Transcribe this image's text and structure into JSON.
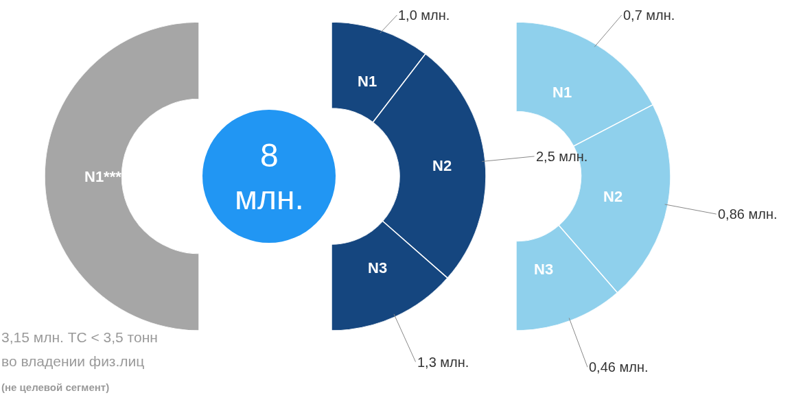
{
  "chart_data": [
    {
      "type": "pie",
      "categories": [
        "N1***"
      ],
      "values": [
        100
      ],
      "colors": [
        "#a6a6a6"
      ],
      "annotations": [
        "3,15 млн. ТС < 3,5 тонн",
        "во владении физ.лиц",
        "(не целевой сегмент)"
      ]
    },
    {
      "type": "other",
      "annotations": [
        "8\nмлн."
      ]
    },
    {
      "type": "donut",
      "categories": [
        "N1",
        "N2",
        "N3"
      ],
      "values": [
        1.0,
        2.5,
        1.3
      ],
      "colors": [
        "#15467f",
        "#15467f",
        "#15467f"
      ],
      "value_labels": [
        "1,0 млн.",
        "2,5 млн.",
        "1,3 млн."
      ]
    },
    {
      "type": "donut",
      "categories": [
        "N1",
        "N2",
        "N3"
      ],
      "values": [
        0.7,
        0.86,
        0.46
      ],
      "colors": [
        "#8fd0ec",
        "#8fd0ec",
        "#8fd0ec"
      ],
      "value_labels": [
        "0,7 млн.",
        "0,86 млн.",
        "0,46 млн."
      ]
    }
  ]
}
